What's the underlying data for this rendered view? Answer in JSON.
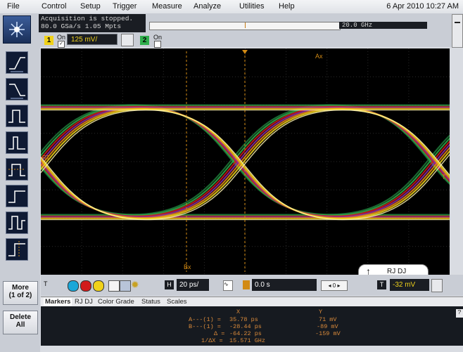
{
  "menu": [
    "File",
    "Control",
    "Setup",
    "Trigger",
    "Measure",
    "Analyze",
    "Utilities",
    "Help"
  ],
  "datetime": "6 Apr 2010 10:27 AM",
  "acquisition": {
    "status": "Acquisition is stopped.",
    "rate": "80.0 GSa/s   1.05 Mpts"
  },
  "bandwidth": "20.0 GHz",
  "channel1": {
    "number": "1",
    "on_label": "On",
    "scale": "125 mV/"
  },
  "channel2": {
    "number": "2",
    "on_label": "On"
  },
  "scope_labels": {
    "ax": "Ax",
    "bx": "Bx",
    "ref_left": "RT",
    "ref_right": "T"
  },
  "horizontal": {
    "badge": "H",
    "scale": "20 ps/",
    "delay": "0.0 s"
  },
  "trigger": {
    "badge": "T",
    "level": "-32 mV"
  },
  "rjdj_popup": "RJ DJ",
  "tabs": [
    "Markers",
    "RJ DJ",
    "Color Grade",
    "Status",
    "Scales"
  ],
  "markers": {
    "header_x": "X",
    "header_y": "Y",
    "rows": [
      {
        "label": "A---(1) =",
        "x": "35.78 ps",
        "y": "71 mV"
      },
      {
        "label": "B---(1) =",
        "x": "-28.44 ps",
        "y": "-89 mV"
      },
      {
        "label": "Δ =",
        "x": "-64.22 ps",
        "y": "-159 mV"
      },
      {
        "label": "1/ΔX =",
        "x": "15.571 GHz",
        "y": ""
      }
    ]
  },
  "side_buttons": {
    "more": "More",
    "more_sub": "(1 of 2)",
    "delete": "Delete",
    "delete_sub": "All"
  },
  "colors": {
    "accent": "#c77a14",
    "cursor": "#d28a14",
    "screen": "#000000"
  }
}
